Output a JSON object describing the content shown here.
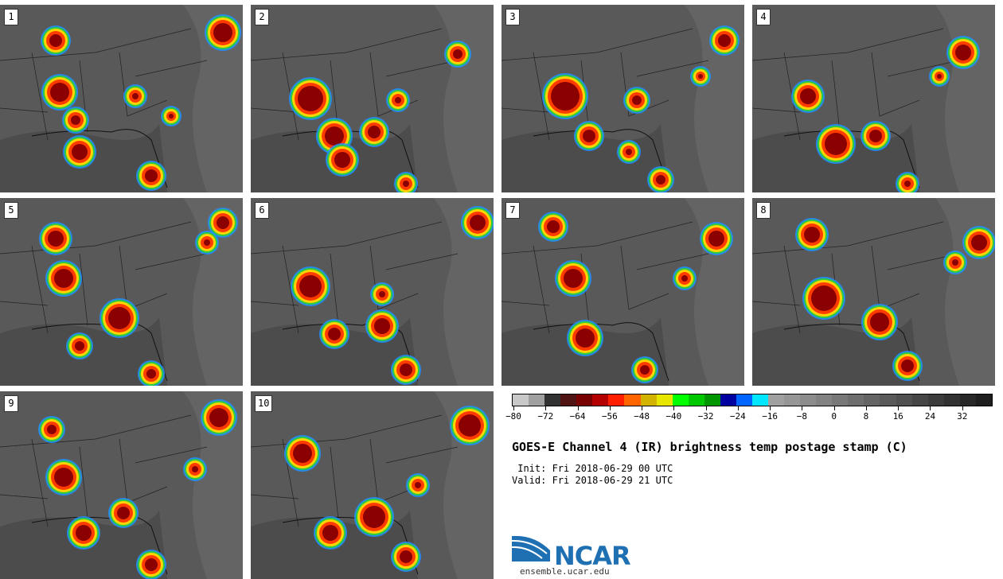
{
  "panels": [
    {
      "label": "1"
    },
    {
      "label": "2"
    },
    {
      "label": "3"
    },
    {
      "label": "4"
    },
    {
      "label": "5"
    },
    {
      "label": "6"
    },
    {
      "label": "7"
    },
    {
      "label": "8"
    },
    {
      "label": "9"
    },
    {
      "label": "10"
    }
  ],
  "colorbar": {
    "colors": [
      "#c8c8c8",
      "#a0a0a0",
      "#323232",
      "#501414",
      "#780000",
      "#b40000",
      "#ff1e00",
      "#ff6400",
      "#d2b400",
      "#e6e600",
      "#00ff00",
      "#00c800",
      "#009600",
      "#0000a0",
      "#0064ff",
      "#00e6ff",
      "#a0a0a0",
      "#969696",
      "#8c8c8c",
      "#828282",
      "#787878",
      "#6e6e6e",
      "#646464",
      "#5a5a5a",
      "#505050",
      "#464646",
      "#3c3c3c",
      "#323232",
      "#282828",
      "#1e1e1e"
    ],
    "ticks": [
      "−80",
      "−72",
      "−64",
      "−56",
      "−48",
      "−40",
      "−32",
      "−24",
      "−16",
      "−8",
      "0",
      "8",
      "16",
      "24",
      "32"
    ]
  },
  "title": "GOES-E Channel 4 (IR) brightness temp postage stamp (C)",
  "init": " Init: Fri 2018-06-29 00 UTC",
  "valid": "Valid: Fri 2018-06-29 21 UTC",
  "logo": {
    "name": "NCAR",
    "url": "ensemble.ucar.edu"
  }
}
